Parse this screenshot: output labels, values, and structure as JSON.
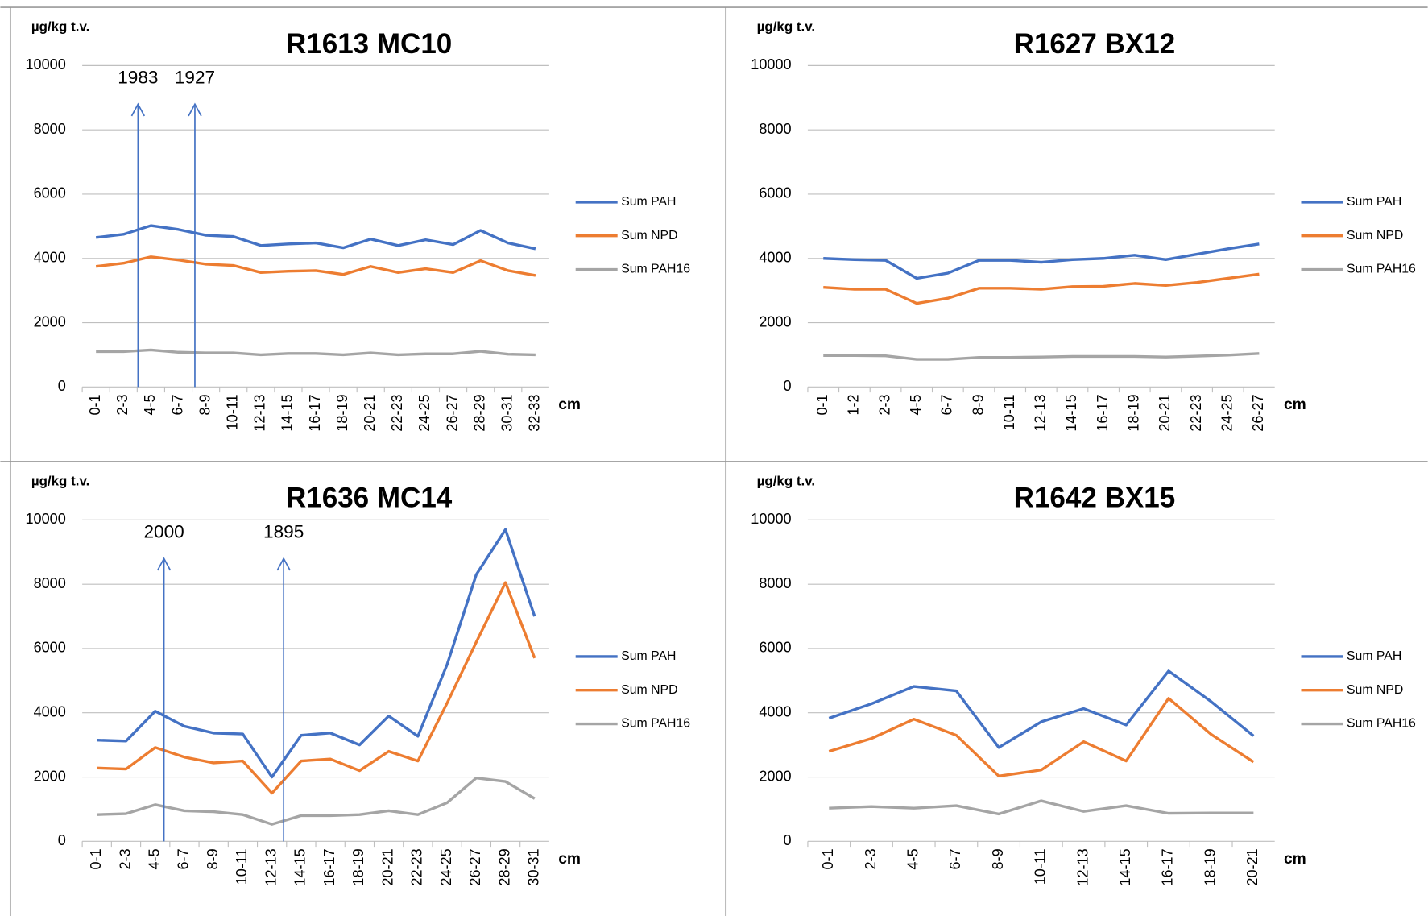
{
  "chart_data": [
    {
      "type": "line",
      "title": "R1613 MC10",
      "y_label": "µg/kg t.v.",
      "x_label": "cm",
      "annotations": [
        "1983",
        "1927"
      ],
      "categories": [
        "0-1",
        "2-3",
        "4-5",
        "6-7",
        "8-9",
        "10-11",
        "12-13",
        "14-15",
        "16-17",
        "18-19",
        "20-21",
        "22-23",
        "24-25",
        "26-27",
        "28-29",
        "30-31",
        "32-33"
      ],
      "series": [
        {
          "name": "Sum PAH",
          "color": "#4472c4",
          "values": [
            4650,
            4750,
            5020,
            4900,
            4720,
            4680,
            4400,
            4450,
            4480,
            4330,
            4600,
            4400,
            4580,
            4430,
            4870,
            4480,
            4300
          ]
        },
        {
          "name": "Sum NPD",
          "color": "#ed7d31",
          "values": [
            3750,
            3850,
            4050,
            3950,
            3820,
            3780,
            3560,
            3600,
            3620,
            3500,
            3750,
            3560,
            3680,
            3560,
            3930,
            3620,
            3470
          ]
        },
        {
          "name": "Sum PAH16",
          "color": "#a5a5a5",
          "values": [
            1100,
            1100,
            1150,
            1080,
            1060,
            1060,
            1000,
            1040,
            1040,
            1000,
            1060,
            1000,
            1030,
            1030,
            1110,
            1020,
            1000
          ]
        }
      ],
      "ylim": [
        0,
        10000
      ],
      "yticks": [
        0,
        2000,
        4000,
        6000,
        8000,
        10000
      ],
      "grid": true,
      "legend": "right"
    },
    {
      "type": "line",
      "title": "R1627 BX12",
      "y_label": "µg/kg t.v.",
      "x_label": "cm",
      "categories": [
        "0-1",
        "1-2",
        "2-3",
        "4-5",
        "6-7",
        "8-9",
        "10-11",
        "12-13",
        "14-15",
        "16-17",
        "18-19",
        "20-21",
        "22-23",
        "24-25",
        "26-27"
      ],
      "series": [
        {
          "name": "Sum PAH",
          "color": "#4472c4",
          "values": [
            4000,
            3960,
            3940,
            3380,
            3540,
            3940,
            3940,
            3880,
            3960,
            4000,
            4100,
            3960,
            4130,
            4300,
            4450
          ]
        },
        {
          "name": "Sum NPD",
          "color": "#ed7d31",
          "values": [
            3100,
            3040,
            3040,
            2600,
            2760,
            3070,
            3070,
            3040,
            3120,
            3130,
            3220,
            3160,
            3250,
            3380,
            3510
          ]
        },
        {
          "name": "Sum PAH16",
          "color": "#a5a5a5",
          "values": [
            980,
            980,
            970,
            860,
            860,
            920,
            920,
            930,
            950,
            950,
            950,
            930,
            960,
            990,
            1040
          ]
        }
      ],
      "ylim": [
        0,
        10000
      ],
      "yticks": [
        0,
        2000,
        4000,
        6000,
        8000,
        10000
      ],
      "grid": true,
      "legend": "right"
    },
    {
      "type": "line",
      "title": "R1636 MC14",
      "y_label": "µg/kg t.v.",
      "x_label": "cm",
      "annotations": [
        "2000",
        "1895"
      ],
      "categories": [
        "0-1",
        "2-3",
        "4-5",
        "6-7",
        "8-9",
        "10-11",
        "12-13",
        "14-15",
        "16-17",
        "18-19",
        "20-21",
        "22-23",
        "24-25",
        "26-27",
        "28-29",
        "30-31"
      ],
      "series": [
        {
          "name": "Sum PAH",
          "color": "#4472c4",
          "values": [
            3150,
            3120,
            4050,
            3580,
            3370,
            3340,
            2000,
            3300,
            3370,
            3000,
            3900,
            3270,
            5500,
            8300,
            9700,
            7000
          ]
        },
        {
          "name": "Sum NPD",
          "color": "#ed7d31",
          "values": [
            2280,
            2250,
            2920,
            2620,
            2440,
            2500,
            1500,
            2500,
            2560,
            2200,
            2800,
            2500,
            4300,
            6200,
            8050,
            5700
          ]
        },
        {
          "name": "Sum PAH16",
          "color": "#a5a5a5",
          "values": [
            830,
            860,
            1140,
            950,
            920,
            830,
            530,
            800,
            800,
            830,
            950,
            830,
            1200,
            1970,
            1860,
            1330
          ]
        }
      ],
      "ylim": [
        0,
        10000
      ],
      "yticks": [
        0,
        2000,
        4000,
        6000,
        8000,
        10000
      ],
      "grid": true,
      "legend": "right"
    },
    {
      "type": "line",
      "title": "R1642 BX15",
      "y_label": "µg/kg t.v.",
      "x_label": "cm",
      "categories": [
        "0-1",
        "2-3",
        "4-5",
        "6-7",
        "8-9",
        "10-11",
        "12-13",
        "14-15",
        "16-17",
        "18-19",
        "20-21"
      ],
      "series": [
        {
          "name": "Sum PAH",
          "color": "#4472c4",
          "values": [
            3830,
            4280,
            4820,
            4680,
            2920,
            3720,
            4130,
            3620,
            5300,
            4350,
            3280
          ]
        },
        {
          "name": "Sum NPD",
          "color": "#ed7d31",
          "values": [
            2800,
            3200,
            3800,
            3300,
            2030,
            2220,
            3100,
            2500,
            4450,
            3330,
            2470
          ]
        },
        {
          "name": "Sum PAH16",
          "color": "#a5a5a5",
          "values": [
            1030,
            1080,
            1030,
            1110,
            850,
            1260,
            930,
            1110,
            870,
            880,
            880
          ]
        }
      ],
      "ylim": [
        0,
        10000
      ],
      "yticks": [
        0,
        2000,
        4000,
        6000,
        8000,
        10000
      ],
      "grid": true,
      "legend": "right"
    }
  ]
}
